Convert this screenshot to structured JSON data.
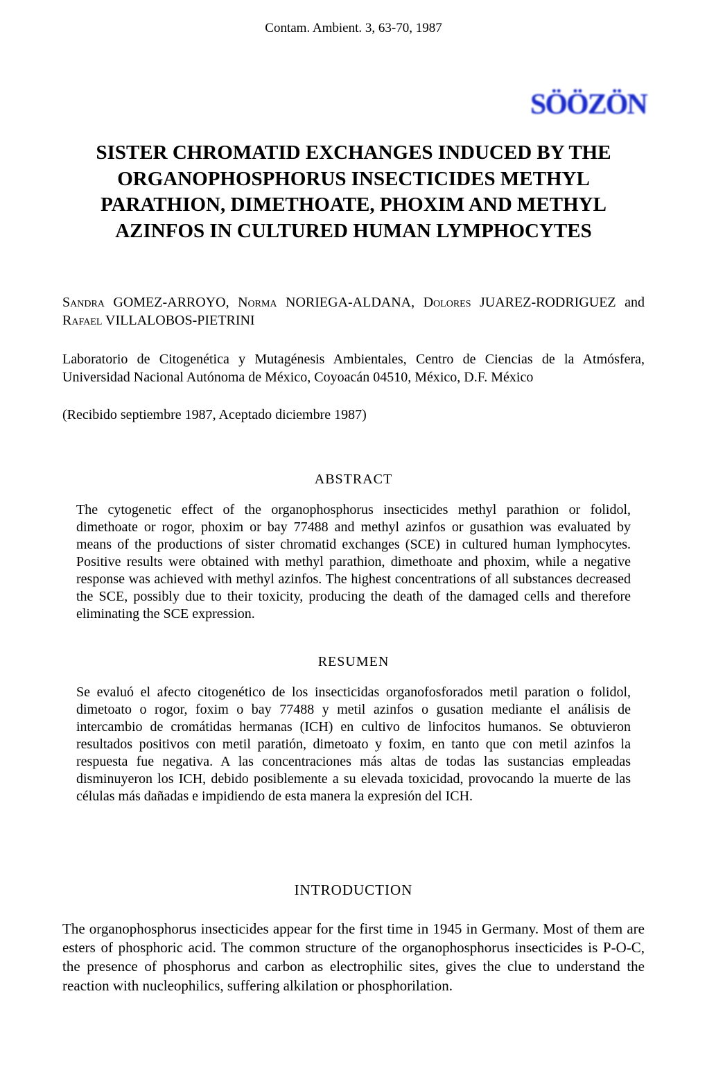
{
  "journal_header": "Contam. Ambient. 3, 63-70, 1987",
  "stamp_text": "SÖÖZÖN",
  "title": "SISTER CHROMATID EXCHANGES INDUCED BY THE ORGANOPHOSPHORUS INSECTICIDES METHYL PARATHION, DIMETHOATE, PHOXIM AND METHYL AZINFOS IN CULTURED HUMAN LYMPHOCYTES",
  "authors_html": "Sandra GOMEZ-ARROYO, Norma NORIEGA-ALDANA, Dolores JUAREZ-RODRIGUEZ and Rafael VILLALOBOS-PIETRINI",
  "affiliation": "Laboratorio de Citogenética y Mutagénesis Ambientales, Centro de Ciencias de la Atmósfera, Universidad Nacional Autónoma de México, Coyoacán 04510, México, D.F. México",
  "dates": "(Recibido septiembre 1987, Aceptado diciembre 1987)",
  "abstract_heading": "ABSTRACT",
  "abstract_text": "The cytogenetic effect of the organophosphorus insecticides methyl parathion or folidol, dimethoate or rogor, phoxim or bay 77488 and methyl azinfos or gusathion was evaluated by means of the productions of sister chromatid exchanges (SCE) in cultured human lymphocytes. Positive results were obtained with methyl parathion, dimethoate and phoxim, while a negative response was achieved with methyl azinfos. The highest concentrations of all substances decreased the SCE, possibly due to their toxicity, producing the death of the damaged cells and therefore eliminating the SCE expression.",
  "resumen_heading": "RESUMEN",
  "resumen_text": "Se evaluó el afecto citogenético de los insecticidas organofosforados metil paration o folidol, dimetoato o rogor, foxim o bay 77488 y metil azinfos o gusation mediante el análisis de intercambio de cromátidas hermanas (ICH) en cultivo de linfocitos humanos. Se obtuvieron resultados positivos con metil paratión, dimetoato y foxim, en tanto que con metil azinfos la respuesta fue negativa. A las concentraciones más altas de todas las sustancias empleadas disminuyeron los ICH, debido posiblemente a su elevada toxicidad, provocando la muerte de las células más dañadas e impidiendo de esta manera la expresión del ICH.",
  "intro_heading": "INTRODUCTION",
  "intro_text": "The organophosphorus insecticides appear for the first time in 1945 in Germany. Most of them are esters of phosphoric acid. The common structure of the organophosphorus insecticides is P-O-C, the presence of phosphorus and carbon as electrophilic sites, gives the clue to understand the reaction with nucleophilics, suffering alkilation or phosphorilation.",
  "colors": {
    "background": "#ffffff",
    "text": "#000000",
    "stamp": "#1a2bc9"
  },
  "typography": {
    "font_family": "Times New Roman, Times, serif",
    "title_fontsize": 29,
    "body_fontsize": 20,
    "intro_fontsize": 21
  }
}
